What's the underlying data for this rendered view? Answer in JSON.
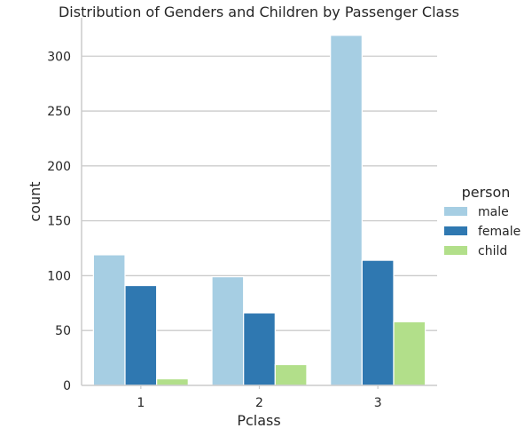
{
  "chart_data": {
    "type": "bar",
    "title": "Distribution of Genders and Children by Passenger Class",
    "xlabel": "Pclass",
    "ylabel": "count",
    "categories": [
      "1",
      "2",
      "3"
    ],
    "series": [
      {
        "name": "male",
        "values": [
          119,
          99,
          319
        ],
        "color": "#a6cee3"
      },
      {
        "name": "female",
        "values": [
          91,
          66,
          114
        ],
        "color": "#2f78b1"
      },
      {
        "name": "child",
        "values": [
          6,
          19,
          58
        ],
        "color": "#b2df8a"
      }
    ],
    "yticks": [
      0,
      50,
      100,
      150,
      200,
      250,
      300
    ],
    "ylim": [
      0,
      335
    ],
    "grid": "horizontal",
    "legend": {
      "title": "person",
      "placement": "right"
    }
  }
}
